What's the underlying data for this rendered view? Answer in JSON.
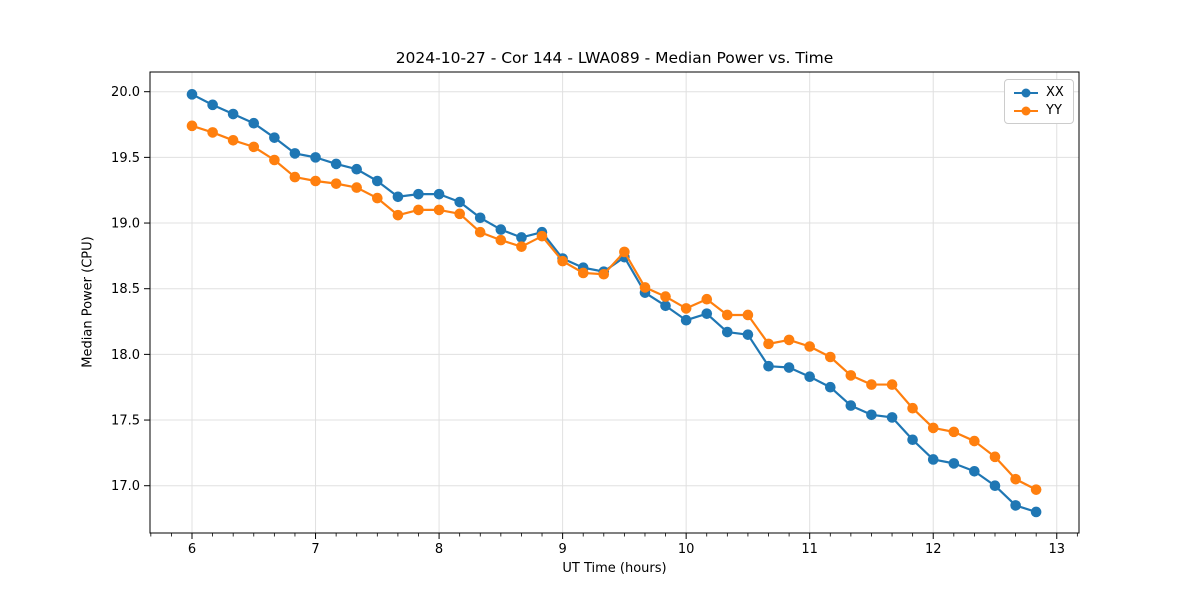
{
  "chart_data": {
    "type": "line",
    "title": "2024-10-27 - Cor 144 - LWA089 - Median Power vs. Time",
    "xlabel": "UT Time (hours)",
    "ylabel": "Median Power (CPU)",
    "xlim": [
      5.66,
      13.18
    ],
    "ylim": [
      16.64,
      20.15
    ],
    "grid": true,
    "grid_color": "#e0e0e0",
    "legend_position": "upper right",
    "x": [
      6.0,
      6.167,
      6.333,
      6.5,
      6.667,
      6.833,
      7.0,
      7.167,
      7.333,
      7.5,
      7.667,
      7.833,
      8.0,
      8.167,
      8.333,
      8.5,
      8.667,
      8.833,
      9.0,
      9.167,
      9.333,
      9.5,
      9.667,
      9.833,
      10.0,
      10.167,
      10.333,
      10.5,
      10.667,
      10.833,
      11.0,
      11.167,
      11.333,
      11.5,
      11.667,
      11.833,
      12.0,
      12.167,
      12.333,
      12.5,
      12.667,
      12.833
    ],
    "series": [
      {
        "name": "XX",
        "color": "#1f77b4",
        "marker": "circle",
        "values": [
          19.98,
          19.9,
          19.83,
          19.76,
          19.65,
          19.53,
          19.5,
          19.45,
          19.41,
          19.32,
          19.2,
          19.22,
          19.22,
          19.16,
          19.04,
          18.95,
          18.89,
          18.93,
          18.73,
          18.66,
          18.63,
          18.74,
          18.47,
          18.37,
          18.26,
          18.31,
          18.17,
          18.15,
          17.91,
          17.9,
          17.83,
          17.75,
          17.61,
          17.54,
          17.52,
          17.35,
          17.2,
          17.17,
          17.11,
          17.0,
          16.85,
          16.8
        ]
      },
      {
        "name": "YY",
        "color": "#ff7f0e",
        "marker": "circle",
        "values": [
          19.74,
          19.69,
          19.63,
          19.58,
          19.48,
          19.35,
          19.32,
          19.3,
          19.27,
          19.19,
          19.06,
          19.1,
          19.1,
          19.07,
          18.93,
          18.87,
          18.82,
          18.9,
          18.71,
          18.62,
          18.61,
          18.78,
          18.51,
          18.44,
          18.35,
          18.42,
          18.3,
          18.3,
          18.08,
          18.11,
          18.06,
          17.98,
          17.84,
          17.77,
          17.77,
          17.59,
          17.44,
          17.41,
          17.34,
          17.22,
          17.05,
          16.97
        ]
      }
    ],
    "x_ticks": {
      "values": [
        6,
        7,
        8,
        9,
        10,
        11,
        12,
        13
      ],
      "labels": [
        "6",
        "7",
        "8",
        "9",
        "10",
        "11",
        "12",
        "13"
      ],
      "minor_tick_step_hours": 0.1667
    },
    "y_ticks": {
      "values": [
        17.0,
        17.5,
        18.0,
        18.5,
        19.0,
        19.5,
        20.0
      ],
      "labels": [
        "17.0",
        "17.5",
        "18.0",
        "18.5",
        "19.0",
        "19.5",
        "20.0"
      ]
    }
  }
}
